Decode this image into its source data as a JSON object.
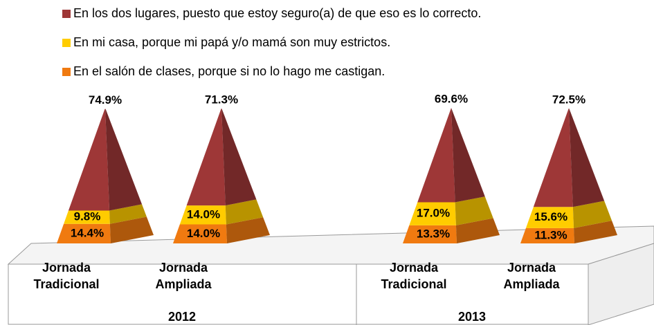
{
  "chart_data": {
    "type": "pyramid",
    "categories": [
      "Jornada Tradicional",
      "Jornada Ampliada",
      "Jornada Tradicional",
      "Jornada Ampliada"
    ],
    "groups": [
      "2012",
      "2013"
    ],
    "series": [
      {
        "name": "En los dos lugares, puesto que estoy seguro(a) de que eso es lo correcto.",
        "color": "#9e3737",
        "values": [
          74.9,
          71.3,
          69.6,
          72.5
        ],
        "value_labels": [
          "74.9%",
          "71.3%",
          "69.6%",
          "72.5%"
        ]
      },
      {
        "name": "En mi casa, porque mi papá y/o mamá son muy estrictos.",
        "color": "#ffcc00",
        "values": [
          9.8,
          14.0,
          17.0,
          15.6
        ],
        "value_labels": [
          "9.8%",
          "14.0%",
          "17.0%",
          "15.6%"
        ]
      },
      {
        "name": "En el salón de clases, porque si no lo hago me castigan.",
        "color": "#f07a10",
        "values": [
          14.4,
          14.0,
          13.3,
          11.3
        ],
        "value_labels": [
          "14.4%",
          "14.0%",
          "13.3%",
          "11.3%"
        ]
      }
    ],
    "legend": "top"
  }
}
